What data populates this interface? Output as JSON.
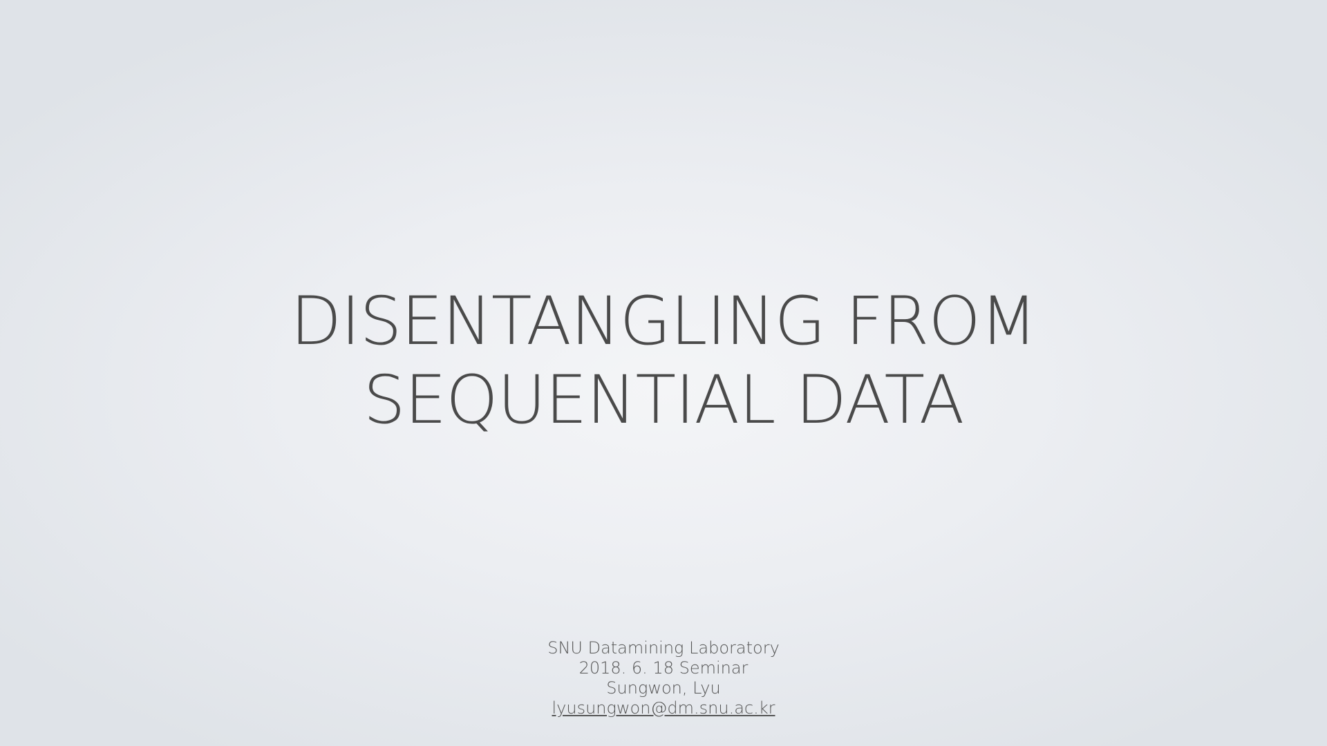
{
  "slide": {
    "title": {
      "line1": "DISENTANGLING FROM",
      "line2": "SEQUENTIAL DATA"
    },
    "info": {
      "lab": "SNU Datamining Laboratory",
      "event": "2018. 6. 18 Seminar",
      "author": "Sungwon, Lyu",
      "email": "lyusungwon@dm.snu.ac.kr"
    }
  },
  "colors": {
    "text": "#4a4a4a",
    "background_center": "#f4f5f7",
    "background_edge": "#dfe3e8"
  }
}
